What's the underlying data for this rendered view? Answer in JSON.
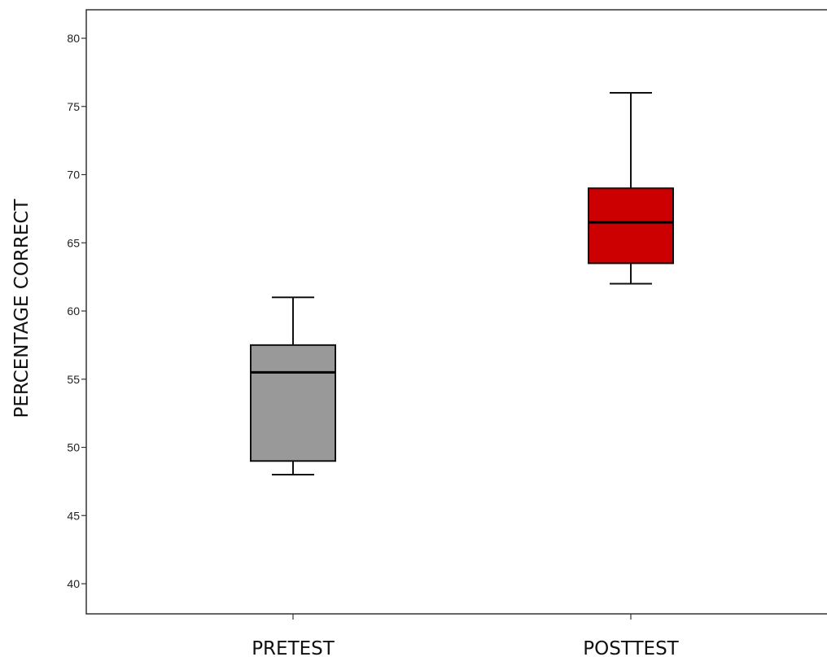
{
  "chart_data": {
    "type": "boxplot",
    "title": "",
    "xlabel": "",
    "ylabel": "PERCENTAGE CORRECT",
    "ylim": [
      38,
      82
    ],
    "yticks": [
      40,
      45,
      50,
      55,
      60,
      65,
      70,
      75,
      80
    ],
    "grid": false,
    "categories": [
      "PRETEST",
      "POSTTEST"
    ],
    "boxes": [
      {
        "category": "PRETEST",
        "min": 48,
        "q1": 49,
        "median": 55.5,
        "q3": 57.5,
        "max": 61,
        "color": "#999999"
      },
      {
        "category": "POSTTEST",
        "min": 62,
        "q1": 63.5,
        "median": 66.5,
        "q3": 69,
        "max": 76,
        "color": "#cc0000"
      }
    ]
  }
}
